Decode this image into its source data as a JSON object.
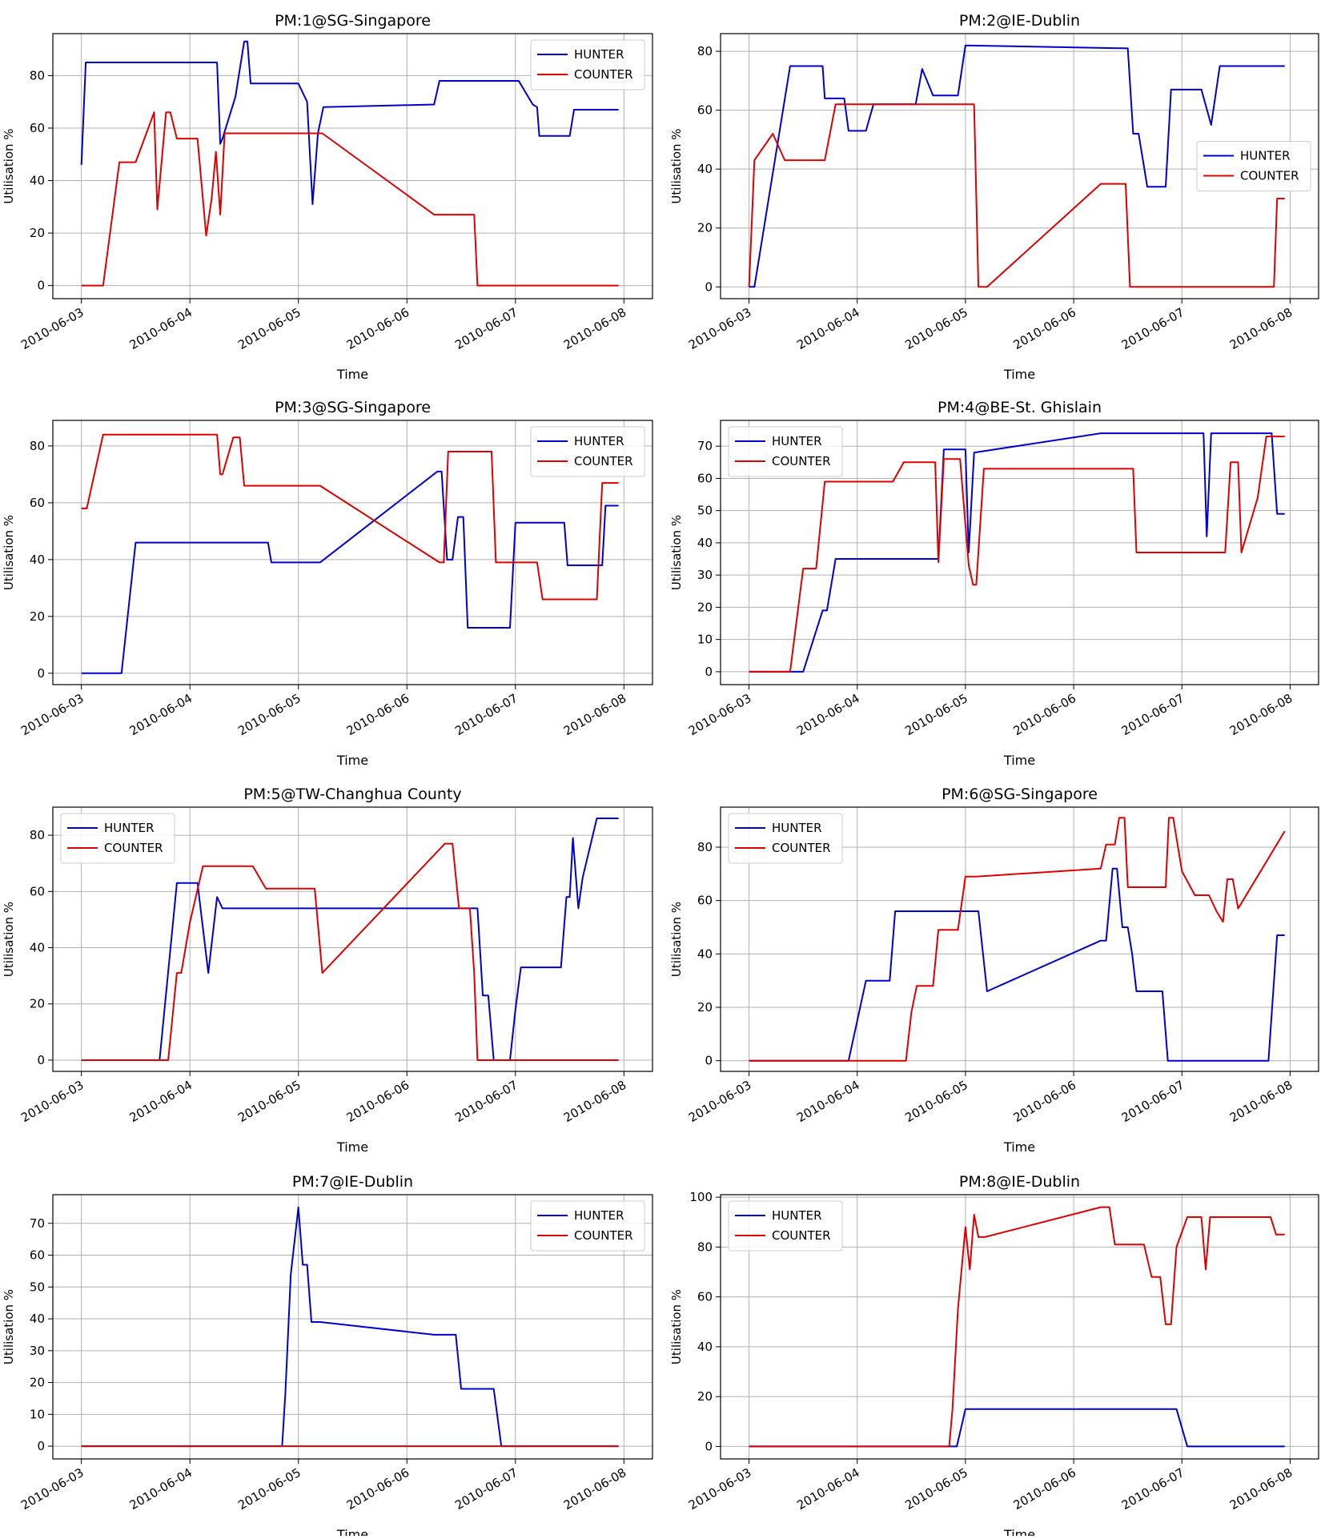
{
  "chart_data": [
    {
      "type": "line",
      "title": "PM:1@SG-Singapore",
      "xlabel": "Time",
      "ylabel": "Utilisation %",
      "xlim": [
        0,
        5
      ],
      "ylim": [
        -5,
        96
      ],
      "yticks": [
        0,
        20,
        40,
        60,
        80
      ],
      "xtick_values": [
        0,
        1,
        2,
        3,
        4,
        5
      ],
      "xtick_labels": [
        "2010-06-03",
        "2010-06-04",
        "2010-06-05",
        "2010-06-06",
        "2010-06-07",
        "2010-06-08"
      ],
      "grid": true,
      "legend_position": "top-right",
      "series": [
        {
          "name": "HUNTER",
          "color": "#0000cc",
          "x": [
            0,
            0.04,
            0.05,
            1.25,
            1.28,
            1.3,
            1.42,
            1.5,
            1.53,
            1.56,
            1.6,
            1.64,
            2.0,
            2.08,
            2.13,
            2.18,
            2.23,
            3.25,
            3.3,
            4.0,
            4.03,
            4.16,
            4.2,
            4.22,
            4.5,
            4.54,
            4.95
          ],
          "y": [
            46,
            85,
            85,
            85,
            54,
            56,
            72,
            93,
            93,
            77,
            77,
            77,
            77,
            70,
            31,
            58,
            68,
            69,
            78,
            78,
            78,
            69,
            68,
            57,
            57,
            67,
            67
          ]
        },
        {
          "name": "COUNTER",
          "color": "#dd0000",
          "x": [
            0,
            0.2,
            0.35,
            0.4,
            0.5,
            0.67,
            0.7,
            0.78,
            0.82,
            0.88,
            0.9,
            1.0,
            1.07,
            1.15,
            1.2,
            1.24,
            1.28,
            1.32,
            1.45,
            2.22,
            3.25,
            3.5,
            3.62,
            3.65,
            4.95
          ],
          "y": [
            0,
            0,
            47,
            47,
            47,
            66,
            29,
            66,
            66,
            56,
            56,
            56,
            56,
            19,
            33,
            51,
            27,
            58,
            58,
            58,
            27,
            27,
            27,
            0,
            0
          ]
        }
      ]
    },
    {
      "type": "line",
      "title": "PM:2@IE-Dublin",
      "xlabel": "Time",
      "ylabel": "Utilisation %",
      "xlim": [
        0,
        5
      ],
      "ylim": [
        -4,
        86
      ],
      "yticks": [
        0,
        20,
        40,
        60,
        80
      ],
      "xtick_values": [
        0,
        1,
        2,
        3,
        4,
        5
      ],
      "xtick_labels": [
        "2010-06-03",
        "2010-06-04",
        "2010-06-05",
        "2010-06-06",
        "2010-06-07",
        "2010-06-08"
      ],
      "grid": true,
      "legend_position": "center-right",
      "series": [
        {
          "name": "HUNTER",
          "color": "#0000cc",
          "x": [
            0,
            0.05,
            0.38,
            0.68,
            0.7,
            0.88,
            0.92,
            1.08,
            1.15,
            1.3,
            1.54,
            1.6,
            1.7,
            1.93,
            2.0,
            3.5,
            3.55,
            3.6,
            3.68,
            3.85,
            3.9,
            4.18,
            4.27,
            4.35,
            4.95
          ],
          "y": [
            0,
            0,
            75,
            75,
            64,
            64,
            53,
            53,
            62,
            62,
            62,
            74,
            65,
            65,
            82,
            81,
            52,
            52,
            34,
            34,
            67,
            67,
            55,
            75,
            75
          ]
        },
        {
          "name": "COUNTER",
          "color": "#dd0000",
          "x": [
            0,
            0.05,
            0.22,
            0.33,
            0.7,
            0.8,
            2.08,
            2.12,
            2.2,
            3.25,
            3.48,
            3.52,
            4.85,
            4.88,
            4.95
          ],
          "y": [
            0,
            43,
            52,
            43,
            43,
            62,
            62,
            0,
            0,
            35,
            35,
            0,
            0,
            30,
            30
          ]
        }
      ]
    },
    {
      "type": "line",
      "title": "PM:3@SG-Singapore",
      "xlabel": "Time",
      "ylabel": "Utilisation %",
      "xlim": [
        0,
        5
      ],
      "ylim": [
        -4,
        89
      ],
      "yticks": [
        0,
        20,
        40,
        60,
        80
      ],
      "xtick_values": [
        0,
        1,
        2,
        3,
        4,
        5
      ],
      "xtick_labels": [
        "2010-06-03",
        "2010-06-04",
        "2010-06-05",
        "2010-06-06",
        "2010-06-07",
        "2010-06-08"
      ],
      "grid": true,
      "legend_position": "top-right",
      "series": [
        {
          "name": "HUNTER",
          "color": "#0000cc",
          "x": [
            0,
            0.37,
            0.5,
            1.72,
            1.75,
            2.2,
            3.28,
            3.32,
            3.37,
            3.42,
            3.47,
            3.52,
            3.56,
            3.6,
            3.95,
            4.0,
            4.45,
            4.48,
            4.8,
            4.83,
            4.95
          ],
          "y": [
            0,
            0,
            46,
            46,
            39,
            39,
            71,
            71,
            40,
            40,
            55,
            55,
            16,
            16,
            16,
            53,
            53,
            38,
            38,
            59,
            59
          ]
        },
        {
          "name": "COUNTER",
          "color": "#dd0000",
          "x": [
            0,
            0.05,
            0.2,
            1.25,
            1.28,
            1.3,
            1.4,
            1.46,
            1.5,
            2.2,
            3.3,
            3.34,
            3.38,
            3.78,
            3.82,
            4.2,
            4.25,
            4.75,
            4.8,
            4.95
          ],
          "y": [
            58,
            58,
            84,
            84,
            70,
            70,
            83,
            83,
            66,
            66,
            39,
            39,
            78,
            78,
            39,
            39,
            26,
            26,
            67,
            67
          ]
        }
      ]
    },
    {
      "type": "line",
      "title": "PM:4@BE-St. Ghislain",
      "xlabel": "Time",
      "ylabel": "Utilisation %",
      "xlim": [
        0,
        5
      ],
      "ylim": [
        -4,
        78
      ],
      "yticks": [
        0,
        10,
        20,
        30,
        40,
        50,
        60,
        70
      ],
      "xtick_values": [
        0,
        1,
        2,
        3,
        4,
        5
      ],
      "xtick_labels": [
        "2010-06-03",
        "2010-06-04",
        "2010-06-05",
        "2010-06-06",
        "2010-06-07",
        "2010-06-08"
      ],
      "grid": true,
      "legend_position": "top-left",
      "series": [
        {
          "name": "HUNTER",
          "color": "#0000cc",
          "x": [
            0,
            0.5,
            0.68,
            0.72,
            0.8,
            1.75,
            1.8,
            2.0,
            2.03,
            2.08,
            3.25,
            4.2,
            4.23,
            4.27,
            4.83,
            4.88,
            4.95
          ],
          "y": [
            0,
            0,
            19,
            19,
            35,
            35,
            69,
            69,
            37,
            68,
            74,
            74,
            42,
            74,
            74,
            49,
            49
          ]
        },
        {
          "name": "COUNTER",
          "color": "#dd0000",
          "x": [
            0,
            0.38,
            0.5,
            0.62,
            0.7,
            1.33,
            1.43,
            1.72,
            1.75,
            1.8,
            1.95,
            2.03,
            2.07,
            2.1,
            2.17,
            3.55,
            3.58,
            4.4,
            4.45,
            4.52,
            4.55,
            4.7,
            4.78,
            4.95
          ],
          "y": [
            0,
            0,
            32,
            32,
            59,
            59,
            65,
            65,
            34,
            66,
            66,
            33,
            27,
            27,
            63,
            63,
            37,
            37,
            65,
            65,
            37,
            54,
            73,
            73
          ]
        }
      ]
    },
    {
      "type": "line",
      "title": "PM:5@TW-Changhua County",
      "xlabel": "Time",
      "ylabel": "Utilisation %",
      "xlim": [
        0,
        5
      ],
      "ylim": [
        -4,
        90
      ],
      "yticks": [
        0,
        20,
        40,
        60,
        80
      ],
      "xtick_values": [
        0,
        1,
        2,
        3,
        4,
        5
      ],
      "xtick_labels": [
        "2010-06-03",
        "2010-06-04",
        "2010-06-05",
        "2010-06-06",
        "2010-06-07",
        "2010-06-08"
      ],
      "grid": true,
      "legend_position": "top-left",
      "series": [
        {
          "name": "HUNTER",
          "color": "#0000cc",
          "x": [
            0,
            0.72,
            0.88,
            1.07,
            1.17,
            1.25,
            1.3,
            3.6,
            3.65,
            3.7,
            3.75,
            3.8,
            3.95,
            4.0,
            4.05,
            4.42,
            4.47,
            4.5,
            4.53,
            4.58,
            4.62,
            4.75,
            4.95
          ],
          "y": [
            0,
            0,
            63,
            63,
            31,
            58,
            54,
            54,
            54,
            23,
            23,
            0,
            0,
            18,
            33,
            33,
            58,
            58,
            79,
            54,
            65,
            86,
            86
          ]
        },
        {
          "name": "COUNTER",
          "color": "#dd0000",
          "x": [
            0,
            0.8,
            0.88,
            0.92,
            1.0,
            1.12,
            1.2,
            1.58,
            1.7,
            2.0,
            2.15,
            2.22,
            3.35,
            3.42,
            3.48,
            3.58,
            3.62,
            3.65,
            4.95
          ],
          "y": [
            0,
            0,
            31,
            31,
            49,
            69,
            69,
            69,
            61,
            61,
            61,
            31,
            77,
            77,
            54,
            54,
            31,
            0,
            0
          ]
        }
      ]
    },
    {
      "type": "line",
      "title": "PM:6@SG-Singapore",
      "xlabel": "Time",
      "ylabel": "Utilisation %",
      "xlim": [
        0,
        5
      ],
      "ylim": [
        -4,
        95
      ],
      "yticks": [
        0,
        20,
        40,
        60,
        80
      ],
      "xtick_values": [
        0,
        1,
        2,
        3,
        4,
        5
      ],
      "xtick_labels": [
        "2010-06-03",
        "2010-06-04",
        "2010-06-05",
        "2010-06-06",
        "2010-06-07",
        "2010-06-08"
      ],
      "grid": true,
      "legend_position": "top-left",
      "series": [
        {
          "name": "HUNTER",
          "color": "#0000cc",
          "x": [
            0,
            0.92,
            1.08,
            1.3,
            1.35,
            2.12,
            2.2,
            3.25,
            3.3,
            3.36,
            3.4,
            3.45,
            3.5,
            3.54,
            3.58,
            3.82,
            3.87,
            4.75,
            4.8,
            4.88,
            4.95
          ],
          "y": [
            0,
            0,
            30,
            30,
            56,
            56,
            26,
            45,
            45,
            72,
            72,
            50,
            50,
            40,
            26,
            26,
            0,
            0,
            0,
            47,
            47
          ]
        },
        {
          "name": "COUNTER",
          "color": "#dd0000",
          "x": [
            0,
            1.45,
            1.5,
            1.55,
            1.7,
            1.75,
            1.93,
            2.0,
            2.1,
            3.25,
            3.3,
            3.38,
            3.42,
            3.47,
            3.5,
            3.85,
            3.88,
            3.92,
            4.0,
            4.12,
            4.18,
            4.25,
            4.32,
            4.38,
            4.42,
            4.47,
            4.52,
            4.95
          ],
          "y": [
            0,
            0,
            18,
            28,
            28,
            49,
            49,
            69,
            69,
            72,
            81,
            81,
            91,
            91,
            65,
            65,
            91,
            91,
            71,
            62,
            62,
            62,
            56,
            52,
            68,
            68,
            57,
            86
          ]
        }
      ]
    },
    {
      "type": "line",
      "title": "PM:7@IE-Dublin",
      "xlabel": "Time",
      "ylabel": "Utilisation %",
      "xlim": [
        0,
        5
      ],
      "ylim": [
        -4,
        79
      ],
      "yticks": [
        0,
        10,
        20,
        30,
        40,
        50,
        60,
        70
      ],
      "xtick_values": [
        0,
        1,
        2,
        3,
        4,
        5
      ],
      "xtick_labels": [
        "2010-06-03",
        "2010-06-04",
        "2010-06-05",
        "2010-06-06",
        "2010-06-07",
        "2010-06-08"
      ],
      "grid": true,
      "legend_position": "top-right",
      "series": [
        {
          "name": "HUNTER",
          "color": "#0000cc",
          "x": [
            0,
            1.85,
            1.88,
            1.93,
            2.0,
            2.04,
            2.08,
            2.12,
            2.2,
            3.25,
            3.45,
            3.5,
            3.55,
            3.8,
            3.87,
            3.9,
            4.95
          ],
          "y": [
            0,
            0,
            17,
            54,
            75,
            57,
            57,
            39,
            39,
            35,
            35,
            18,
            18,
            18,
            0,
            0,
            0
          ]
        },
        {
          "name": "COUNTER",
          "color": "#dd0000",
          "x": [
            0,
            4.95
          ],
          "y": [
            0,
            0
          ]
        }
      ]
    },
    {
      "type": "line",
      "title": "PM:8@IE-Dublin",
      "xlabel": "Time",
      "ylabel": "Utilisation %",
      "xlim": [
        0,
        5
      ],
      "ylim": [
        -5,
        101
      ],
      "yticks": [
        0,
        20,
        40,
        60,
        80,
        100
      ],
      "xtick_values": [
        0,
        1,
        2,
        3,
        4,
        5
      ],
      "xtick_labels": [
        "2010-06-03",
        "2010-06-04",
        "2010-06-05",
        "2010-06-06",
        "2010-06-07",
        "2010-06-08"
      ],
      "grid": true,
      "legend_position": "top-left",
      "series": [
        {
          "name": "HUNTER",
          "color": "#0000cc",
          "x": [
            0,
            1.92,
            2.0,
            3.95,
            4.05,
            4.95
          ],
          "y": [
            0,
            0,
            15,
            15,
            0,
            0
          ]
        },
        {
          "name": "COUNTER",
          "color": "#dd0000",
          "x": [
            0,
            1.85,
            1.88,
            1.93,
            2.0,
            2.04,
            2.08,
            2.12,
            2.18,
            3.25,
            3.33,
            3.38,
            3.42,
            3.65,
            3.72,
            3.8,
            3.85,
            3.9,
            3.95,
            4.05,
            4.12,
            4.18,
            4.22,
            4.26,
            4.28,
            4.82,
            4.87,
            4.95
          ],
          "y": [
            0,
            0,
            15,
            55,
            88,
            71,
            93,
            84,
            84,
            96,
            96,
            81,
            81,
            81,
            68,
            68,
            49,
            49,
            80,
            92,
            92,
            92,
            71,
            92,
            92,
            92,
            85,
            85
          ]
        }
      ]
    }
  ]
}
